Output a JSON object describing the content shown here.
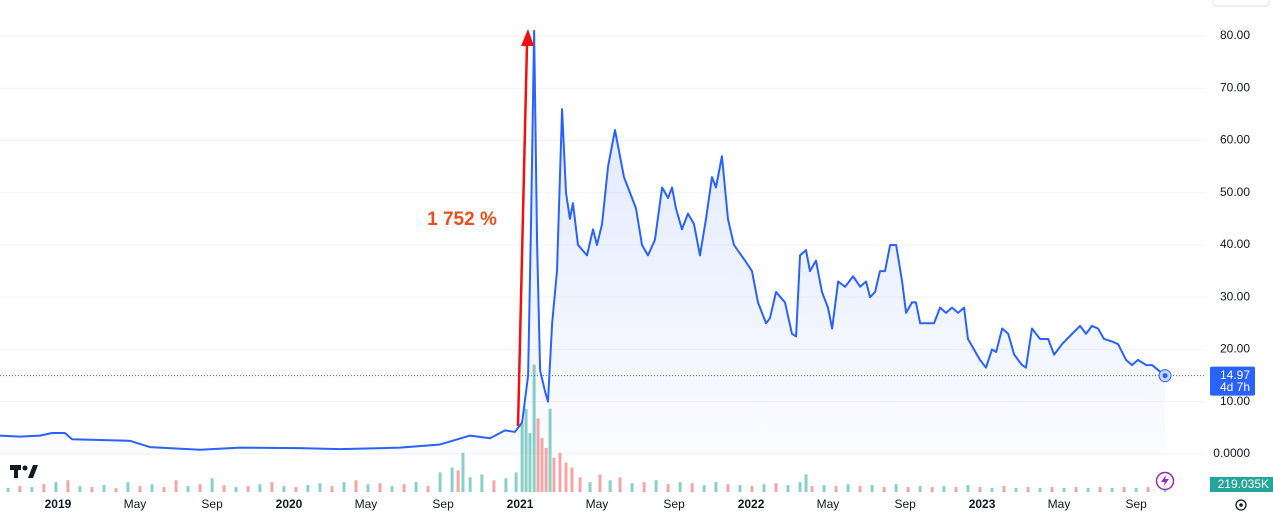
{
  "chart_data": {
    "type": "line",
    "annotation": "1 752 %",
    "countdown": "4d 7h",
    "grid": true,
    "xlim": [
      2018.749,
      2023.965
    ],
    "ylim": [
      -7.3,
      86.9
    ],
    "yticks": [
      {
        "value": 0,
        "label": "0.0000"
      },
      {
        "value": 10,
        "label": "10.00"
      },
      {
        "value": 20,
        "label": "20.00"
      },
      {
        "value": 30,
        "label": "30.00"
      },
      {
        "value": 40,
        "label": "40.00"
      },
      {
        "value": 50,
        "label": "50.00"
      },
      {
        "value": 60,
        "label": "60.00"
      },
      {
        "value": 70,
        "label": "70.00"
      },
      {
        "value": 80,
        "label": "80.00"
      }
    ],
    "xticks": [
      {
        "value": 2019,
        "label": "2019"
      },
      {
        "value": 2019.333,
        "label": "May"
      },
      {
        "value": 2019.667,
        "label": "Sep"
      },
      {
        "value": 2020,
        "label": "2020"
      },
      {
        "value": 2020.333,
        "label": "May"
      },
      {
        "value": 2020.667,
        "label": "Sep"
      },
      {
        "value": 2021,
        "label": "2021"
      },
      {
        "value": 2021.333,
        "label": "May"
      },
      {
        "value": 2021.667,
        "label": "Sep"
      },
      {
        "value": 2022,
        "label": "2022"
      },
      {
        "value": 2022.333,
        "label": "May"
      },
      {
        "value": 2022.667,
        "label": "Sep"
      },
      {
        "value": 2023,
        "label": "2023"
      },
      {
        "value": 2023.333,
        "label": "May"
      },
      {
        "value": 2023.667,
        "label": "Sep"
      }
    ],
    "series": [
      {
        "color": "#2962ff",
        "x": [
          2018.749,
          2018.835,
          2018.922,
          2018.974,
          2019.03,
          2019.061,
          2019.312,
          2019.398,
          2019.615,
          2019.788,
          2020.048,
          2020.221,
          2020.481,
          2020.654,
          2020.784,
          2020.87,
          2020.935,
          2020.978,
          2021.009,
          2021.035,
          2021.048,
          2021.061,
          2021.074,
          2021.087,
          2021.108,
          2021.121,
          2021.139,
          2021.16,
          2021.182,
          2021.199,
          2021.216,
          2021.229,
          2021.251,
          2021.29,
          2021.316,
          2021.333,
          2021.355,
          2021.381,
          2021.411,
          2021.45,
          2021.476,
          2021.502,
          2021.528,
          2021.554,
          2021.584,
          2021.615,
          2021.641,
          2021.658,
          2021.675,
          2021.701,
          2021.727,
          2021.753,
          2021.779,
          2021.805,
          2021.831,
          2021.848,
          2021.874,
          2021.9,
          2021.926,
          2021.974,
          2022.004,
          2022.03,
          2022.065,
          2022.082,
          2022.108,
          2022.147,
          2022.177,
          2022.195,
          2022.212,
          2022.238,
          2022.255,
          2022.281,
          2022.307,
          2022.333,
          2022.351,
          2022.377,
          2022.407,
          2022.442,
          2022.472,
          2022.498,
          2022.515,
          2022.537,
          2022.558,
          2022.58,
          2022.602,
          2022.628,
          2022.654,
          2022.671,
          2022.697,
          2022.714,
          2022.732,
          2022.766,
          2022.792,
          2022.818,
          2022.844,
          2022.87,
          2022.896,
          2022.922,
          2022.939,
          2022.991,
          2023.017,
          2023.043,
          2023.061,
          2023.087,
          2023.113,
          2023.139,
          2023.173,
          2023.19,
          2023.216,
          2023.251,
          2023.286,
          2023.312,
          2023.346,
          2023.39,
          2023.424,
          2023.45,
          2023.476,
          2023.502,
          2023.528,
          2023.563,
          2023.589,
          2023.623,
          2023.649,
          2023.675,
          2023.71,
          2023.736,
          2023.792
        ],
        "values": [
          3.5,
          3.3,
          3.5,
          4.0,
          4.0,
          2.8,
          2.5,
          1.3,
          0.8,
          1.2,
          1.1,
          0.9,
          1.2,
          1.8,
          3.5,
          3.0,
          4.5,
          4.2,
          6,
          15,
          45,
          81,
          40,
          16,
          12,
          10,
          25,
          35,
          66,
          50,
          45,
          48,
          40,
          38,
          43,
          40,
          44,
          55,
          62,
          53,
          50,
          47,
          40,
          38,
          41,
          51,
          49,
          51,
          47,
          43,
          46,
          44,
          38,
          45,
          53,
          51,
          57,
          45,
          40,
          37,
          35,
          29,
          25,
          26,
          31,
          29,
          23,
          22.5,
          38,
          39,
          35,
          37,
          31,
          28,
          24,
          33,
          32,
          34,
          32,
          33,
          30,
          31,
          35,
          35,
          40,
          40,
          33,
          27,
          29,
          29,
          25,
          25,
          25,
          28,
          27,
          28,
          27,
          28,
          22,
          18,
          16.5,
          20,
          19.5,
          24,
          23,
          19,
          17,
          16.5,
          24,
          22,
          22,
          19,
          21,
          23,
          24.5,
          23,
          24.5,
          24,
          22,
          21.5,
          21,
          18,
          17,
          18,
          17,
          17,
          14.97
        ]
      }
    ],
    "volume": {
      "ylim": [
        0,
        10000
      ],
      "x": [
        2018.784,
        2018.835,
        2018.887,
        2018.939,
        2018.991,
        2019.043,
        2019.095,
        2019.147,
        2019.199,
        2019.251,
        2019.303,
        2019.355,
        2019.407,
        2019.459,
        2019.511,
        2019.563,
        2019.615,
        2019.667,
        2019.719,
        2019.771,
        2019.823,
        2019.874,
        2019.926,
        2019.978,
        2020.03,
        2020.082,
        2020.134,
        2020.186,
        2020.238,
        2020.29,
        2020.342,
        2020.394,
        2020.446,
        2020.498,
        2020.55,
        2020.602,
        2020.654,
        2020.706,
        2020.732,
        2020.753,
        2020.784,
        2020.835,
        2020.887,
        2020.939,
        2020.983,
        2021.009,
        2021.026,
        2021.043,
        2021.061,
        2021.078,
        2021.095,
        2021.113,
        2021.13,
        2021.147,
        2021.173,
        2021.199,
        2021.225,
        2021.26,
        2021.303,
        2021.346,
        2021.39,
        2021.433,
        2021.485,
        2021.537,
        2021.589,
        2021.641,
        2021.693,
        2021.745,
        2021.797,
        2021.848,
        2021.9,
        2021.952,
        2022.004,
        2022.056,
        2022.108,
        2022.16,
        2022.212,
        2022.238,
        2022.264,
        2022.316,
        2022.368,
        2022.42,
        2022.472,
        2022.524,
        2022.576,
        2022.628,
        2022.68,
        2022.732,
        2022.784,
        2022.835,
        2022.887,
        2022.939,
        2022.991,
        2023.043,
        2023.095,
        2023.147,
        2023.199,
        2023.251,
        2023.303,
        2023.355,
        2023.407,
        2023.459,
        2023.511,
        2023.563,
        2023.615,
        2023.667,
        2023.719,
        2023.792
      ],
      "values": [
        280,
        420,
        350,
        560,
        700,
        840,
        420,
        350,
        490,
        280,
        700,
        420,
        560,
        350,
        840,
        420,
        560,
        980,
        490,
        350,
        420,
        560,
        700,
        420,
        350,
        490,
        630,
        420,
        700,
        840,
        560,
        630,
        420,
        560,
        700,
        420,
        1400,
        1750,
        1540,
        2800,
        1050,
        1260,
        840,
        980,
        1400,
        4900,
        5950,
        4200,
        9100,
        5250,
        3850,
        3150,
        5950,
        2450,
        2800,
        2100,
        1750,
        1050,
        700,
        1260,
        840,
        1050,
        630,
        700,
        840,
        560,
        700,
        630,
        490,
        700,
        560,
        490,
        420,
        560,
        630,
        490,
        700,
        1260,
        420,
        490,
        420,
        560,
        420,
        490,
        350,
        560,
        350,
        420,
        350,
        420,
        350,
        490,
        350,
        280,
        420,
        280,
        350,
        280,
        350,
        280,
        350,
        280,
        350,
        280,
        350,
        280,
        350,
        219.035
      ],
      "colors": [
        "#89d0c6",
        "#f4a6a6",
        "#89d0c6",
        "#f4a6a6",
        "#89d0c6",
        "#f4a6a6",
        "#89d0c6",
        "#f4a6a6",
        "#89d0c6",
        "#f4a6a6",
        "#89d0c6",
        "#f4a6a6",
        "#89d0c6",
        "#f4a6a6",
        "#f4a6a6",
        "#89d0c6",
        "#f4a6a6",
        "#89d0c6",
        "#f4a6a6",
        "#89d0c6",
        "#f4a6a6",
        "#89d0c6",
        "#f4a6a6",
        "#89d0c6",
        "#f4a6a6",
        "#89d0c6",
        "#89d0c6",
        "#f4a6a6",
        "#89d0c6",
        "#f4a6a6",
        "#89d0c6",
        "#f4a6a6",
        "#89d0c6",
        "#f4a6a6",
        "#89d0c6",
        "#f4a6a6",
        "#89d0c6",
        "#89d0c6",
        "#f4a6a6",
        "#89d0c6",
        "#89d0c6",
        "#89d0c6",
        "#f4a6a6",
        "#89d0c6",
        "#89d0c6",
        "#89d0c6",
        "#89d0c6",
        "#89d0c6",
        "#89d0c6",
        "#f4a6a6",
        "#f4a6a6",
        "#f4a6a6",
        "#89d0c6",
        "#f4a6a6",
        "#f4a6a6",
        "#f4a6a6",
        "#f4a6a6",
        "#f4a6a6",
        "#89d0c6",
        "#f4a6a6",
        "#89d0c6",
        "#f4a6a6",
        "#89d0c6",
        "#f4a6a6",
        "#89d0c6",
        "#f4a6a6",
        "#89d0c6",
        "#f4a6a6",
        "#89d0c6",
        "#89d0c6",
        "#f4a6a6",
        "#89d0c6",
        "#f4a6a6",
        "#89d0c6",
        "#f4a6a6",
        "#89d0c6",
        "#89d0c6",
        "#89d0c6",
        "#f4a6a6",
        "#89d0c6",
        "#f4a6a6",
        "#89d0c6",
        "#f4a6a6",
        "#89d0c6",
        "#f4a6a6",
        "#89d0c6",
        "#f4a6a6",
        "#89d0c6",
        "#f4a6a6",
        "#89d0c6",
        "#f4a6a6",
        "#89d0c6",
        "#f4a6a6",
        "#89d0c6",
        "#f4a6a6",
        "#89d0c6",
        "#f4a6a6",
        "#89d0c6",
        "#f4a6a6",
        "#89d0c6",
        "#f4a6a6",
        "#89d0c6",
        "#f4a6a6",
        "#89d0c6",
        "#f4a6a6",
        "#89d0c6",
        "#f4a6a6",
        "#89d0c6"
      ],
      "value_labels": [
        null,
        null,
        null,
        null,
        null,
        null,
        null,
        null,
        null,
        null,
        null,
        null,
        null,
        null,
        null,
        null,
        null,
        null,
        null,
        null,
        null,
        null,
        null,
        null,
        null,
        null,
        null,
        null,
        null,
        null,
        null,
        null,
        null,
        null,
        null,
        null,
        null,
        null,
        null,
        null,
        null,
        null,
        null,
        null,
        null,
        null,
        null,
        null,
        null,
        null,
        null,
        null,
        null,
        null,
        null,
        null,
        null,
        null,
        null,
        null,
        null,
        null,
        null,
        null,
        null,
        null,
        null,
        null,
        null,
        null,
        null,
        null,
        null,
        null,
        null,
        null,
        null,
        null,
        null,
        null,
        null,
        null,
        null,
        null,
        null,
        null,
        null,
        null,
        null,
        null,
        null,
        null,
        null,
        null,
        null,
        null,
        null,
        null,
        null,
        null,
        null,
        null,
        null,
        null,
        null,
        null,
        null,
        "219.035K"
      ]
    }
  }
}
